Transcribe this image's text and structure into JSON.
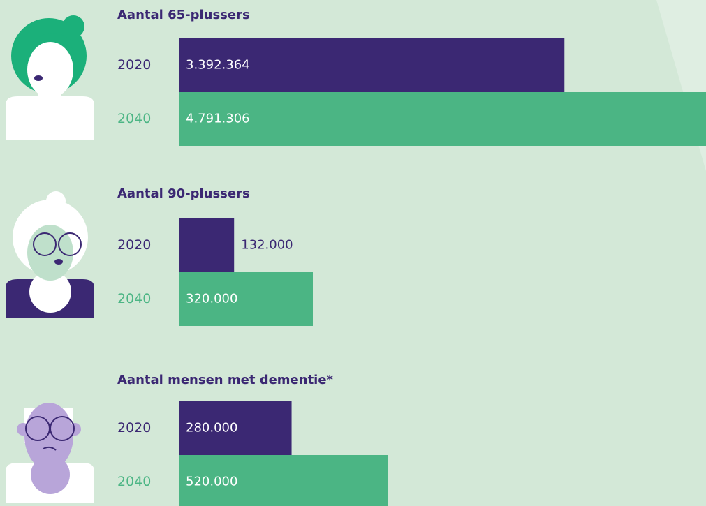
{
  "chart_data": [
    {
      "type": "bar",
      "orientation": "horizontal",
      "title": "Aantal 65-plussers",
      "categories": [
        "2020",
        "2040"
      ],
      "values": [
        3392364,
        4791306
      ],
      "value_labels": [
        "3.392.364",
        "4.791.306"
      ],
      "colors": [
        "#3b2873",
        "#4bb584"
      ]
    },
    {
      "type": "bar",
      "orientation": "horizontal",
      "title": "Aantal 90-plussers",
      "categories": [
        "2020",
        "2040"
      ],
      "values": [
        132000,
        320000
      ],
      "value_labels": [
        "132.000",
        "320.000"
      ],
      "colors": [
        "#3b2873",
        "#4bb584"
      ]
    },
    {
      "type": "bar",
      "orientation": "horizontal",
      "title": "Aantal mensen met dementie*",
      "categories": [
        "2020",
        "2040"
      ],
      "values": [
        280000,
        520000
      ],
      "value_labels": [
        "280.000",
        "520.000"
      ],
      "colors": [
        "#3b2873",
        "#4bb584"
      ]
    }
  ]
}
